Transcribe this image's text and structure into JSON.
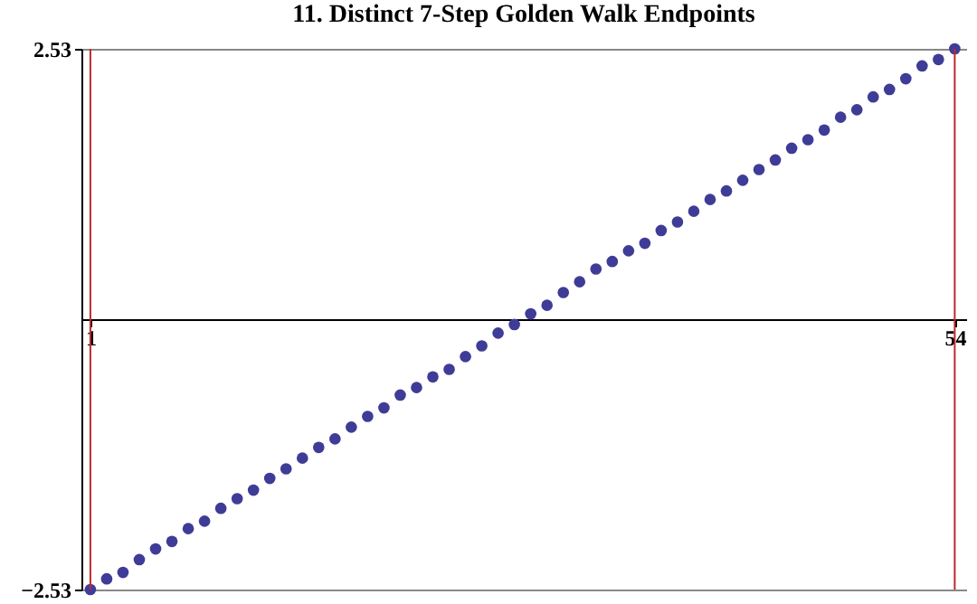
{
  "chart_data": {
    "type": "scatter",
    "title": "11. Distinct 7-Step Golden Walk Endpoints",
    "x": [
      1,
      2,
      3,
      4,
      5,
      6,
      7,
      8,
      9,
      10,
      11,
      12,
      13,
      14,
      15,
      16,
      17,
      18,
      19,
      20,
      21,
      22,
      23,
      24,
      25,
      26,
      27,
      28,
      29,
      30,
      31,
      32,
      33,
      34,
      35,
      36,
      37,
      38,
      39,
      40,
      41,
      42,
      43,
      44,
      45,
      46,
      47,
      48,
      49,
      50,
      51,
      52,
      53,
      54
    ],
    "series": [
      {
        "color": "#3f3c97",
        "values": [
          -2.53,
          -2.43,
          -2.37,
          -2.25,
          -2.15,
          -2.08,
          -1.96,
          -1.89,
          -1.77,
          -1.68,
          -1.6,
          -1.49,
          -1.4,
          -1.3,
          -1.2,
          -1.12,
          -1.01,
          -0.91,
          -0.83,
          -0.71,
          -0.64,
          -0.54,
          -0.47,
          -0.35,
          -0.25,
          -0.13,
          -0.05,
          0.05,
          0.13,
          0.25,
          0.35,
          0.47,
          0.54,
          0.64,
          0.71,
          0.83,
          0.91,
          1.01,
          1.12,
          1.2,
          1.3,
          1.4,
          1.49,
          1.6,
          1.68,
          1.77,
          1.89,
          1.96,
          2.08,
          2.15,
          2.25,
          2.37,
          2.43,
          2.53
        ]
      }
    ],
    "xlim": [
      0.45,
      54.7
    ],
    "xticks": [
      1,
      54
    ],
    "ylim": [
      -2.53,
      2.53
    ],
    "yticks": [
      -2.53,
      2.53
    ],
    "grid": "y",
    "marker": "circle",
    "ref_lines": [
      {
        "axis": "x",
        "value": 1,
        "color": "#c0282d"
      },
      {
        "axis": "x",
        "value": 54,
        "color": "#c0282d"
      }
    ]
  }
}
